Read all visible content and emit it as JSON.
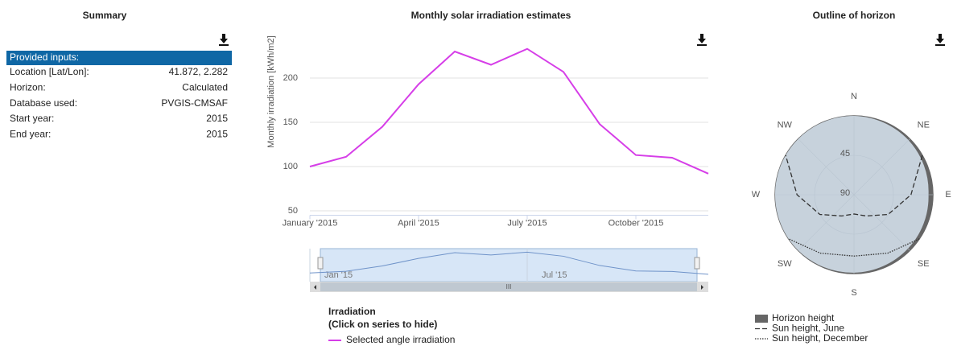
{
  "summary": {
    "title": "Summary",
    "header": "Provided inputs:",
    "rows": [
      [
        "Location [Lat/Lon]:",
        "41.872, 2.282"
      ],
      [
        "Horizon:",
        "Calculated"
      ],
      [
        "Database used:",
        "PVGIS-CMSAF"
      ],
      [
        "Start year:",
        "2015"
      ],
      [
        "End year:",
        "2015"
      ]
    ]
  },
  "chart_data": [
    {
      "type": "line",
      "title": "Monthly solar irradiation estimates",
      "ylabel": "Monthly irradiation [kWh/m2]",
      "categories": [
        "January '2015",
        null,
        null,
        "April '2015",
        null,
        null,
        "July '2015",
        null,
        null,
        "October '2015",
        null,
        null
      ],
      "series": [
        {
          "name": "Selected angle irradiation",
          "color": "#d63ee8",
          "values": [
            100,
            111,
            145,
            193,
            230,
            215,
            233,
            207,
            148,
            113,
            110,
            92
          ]
        }
      ],
      "ylim": [
        45,
        240
      ],
      "yticks": [
        50,
        100,
        150,
        200
      ],
      "grid": true,
      "legend_title": "Irradiation",
      "legend_subtitle": "(Click on series to hide)",
      "navigator_labels": [
        "Jan '15",
        "Jul '15"
      ]
    },
    {
      "type": "polar",
      "title": "Outline of horizon",
      "directions": [
        "N",
        "NE",
        "E",
        "SE",
        "S",
        "SW",
        "W",
        "NW"
      ],
      "rlim": [
        0,
        90
      ],
      "rticks": [
        45,
        90
      ],
      "series": [
        {
          "name": "Horizon height",
          "color": "#666666",
          "x": [
            0,
            45,
            90,
            135,
            180,
            225,
            270,
            315
          ],
          "values": [
            0,
            2,
            5,
            3,
            1,
            0,
            0,
            0
          ]
        },
        {
          "name": "Sun height, June",
          "color": "#333333",
          "dash": "dashed",
          "x": [
            60,
            90,
            120,
            150,
            180,
            210,
            240,
            270,
            300
          ],
          "values": [
            0,
            25,
            45,
            62,
            68,
            62,
            45,
            25,
            0
          ]
        },
        {
          "name": "Sun height, December",
          "color": "#333333",
          "dash": "dotted",
          "x": [
            124,
            150,
            180,
            210,
            236
          ],
          "values": [
            0,
            13,
            20,
            13,
            0
          ]
        }
      ]
    }
  ]
}
